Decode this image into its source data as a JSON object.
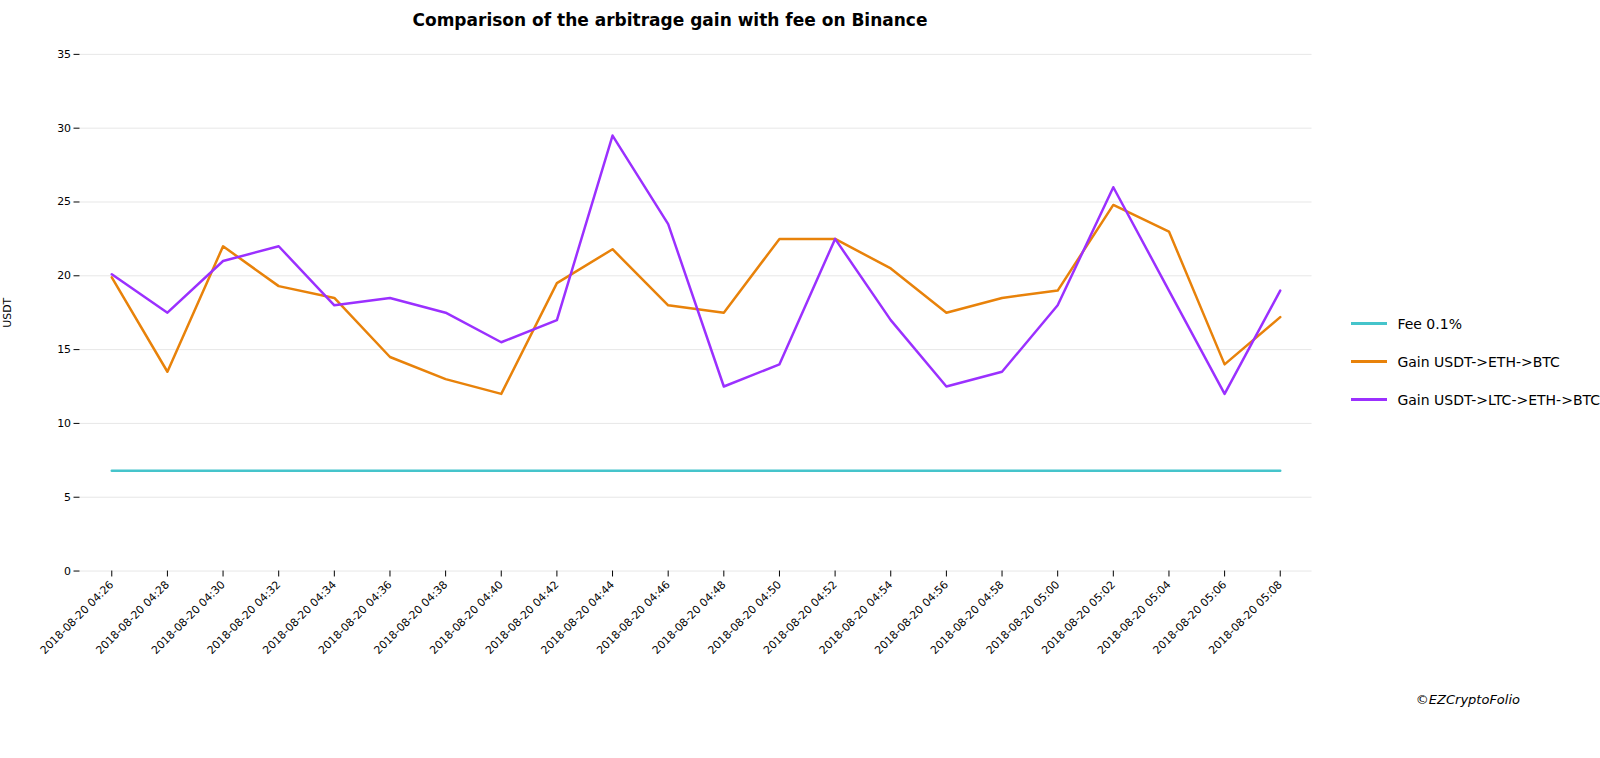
{
  "chart_data": {
    "type": "line",
    "title": "Comparison of the arbitrage gain with fee on Binance",
    "ylabel": "USDT",
    "annotations": [
      "©EZCryptoFolio"
    ],
    "categories": [
      "2018-08-20 04:26",
      "2018-08-20 04:28",
      "2018-08-20 04:30",
      "2018-08-20 04:32",
      "2018-08-20 04:34",
      "2018-08-20 04:36",
      "2018-08-20 04:38",
      "2018-08-20 04:40",
      "2018-08-20 04:42",
      "2018-08-20 04:44",
      "2018-08-20 04:46",
      "2018-08-20 04:48",
      "2018-08-20 04:50",
      "2018-08-20 04:52",
      "2018-08-20 04:54",
      "2018-08-20 04:56",
      "2018-08-20 04:58",
      "2018-08-20 05:00",
      "2018-08-20 05:02",
      "2018-08-20 05:04",
      "2018-08-20 05:06",
      "2018-08-20 05:08"
    ],
    "series": [
      {
        "name": "Fee 0.1%",
        "color": "#45C4CB",
        "values": [
          6.8,
          6.8,
          6.8,
          6.8,
          6.8,
          6.8,
          6.8,
          6.8,
          6.8,
          6.8,
          6.8,
          6.8,
          6.8,
          6.8,
          6.8,
          6.8,
          6.8,
          6.8,
          6.8,
          6.8,
          6.8,
          6.8
        ]
      },
      {
        "name": "Gain USDT->ETH->BTC",
        "color": "#E8820A",
        "values": [
          19.9,
          13.5,
          22.0,
          19.3,
          18.5,
          14.5,
          13.0,
          12.0,
          19.5,
          21.8,
          18.0,
          17.5,
          22.5,
          22.5,
          20.5,
          17.5,
          18.5,
          19.0,
          24.8,
          23.0,
          14.0,
          17.2
        ]
      },
      {
        "name": "Gain USDT->LTC->ETH->BTC",
        "color": "#9B30FF",
        "values": [
          20.1,
          17.5,
          21.0,
          22.0,
          18.0,
          18.5,
          17.5,
          15.5,
          17.0,
          29.5,
          23.5,
          12.5,
          14.0,
          22.5,
          17.0,
          12.5,
          13.5,
          18.0,
          26.0,
          19.0,
          12.0,
          19.0
        ]
      }
    ],
    "ylim": [
      0,
      35
    ],
    "yticks": [
      0,
      5,
      10,
      15,
      20,
      25,
      30,
      35
    ],
    "grid": true,
    "legend": "right"
  }
}
